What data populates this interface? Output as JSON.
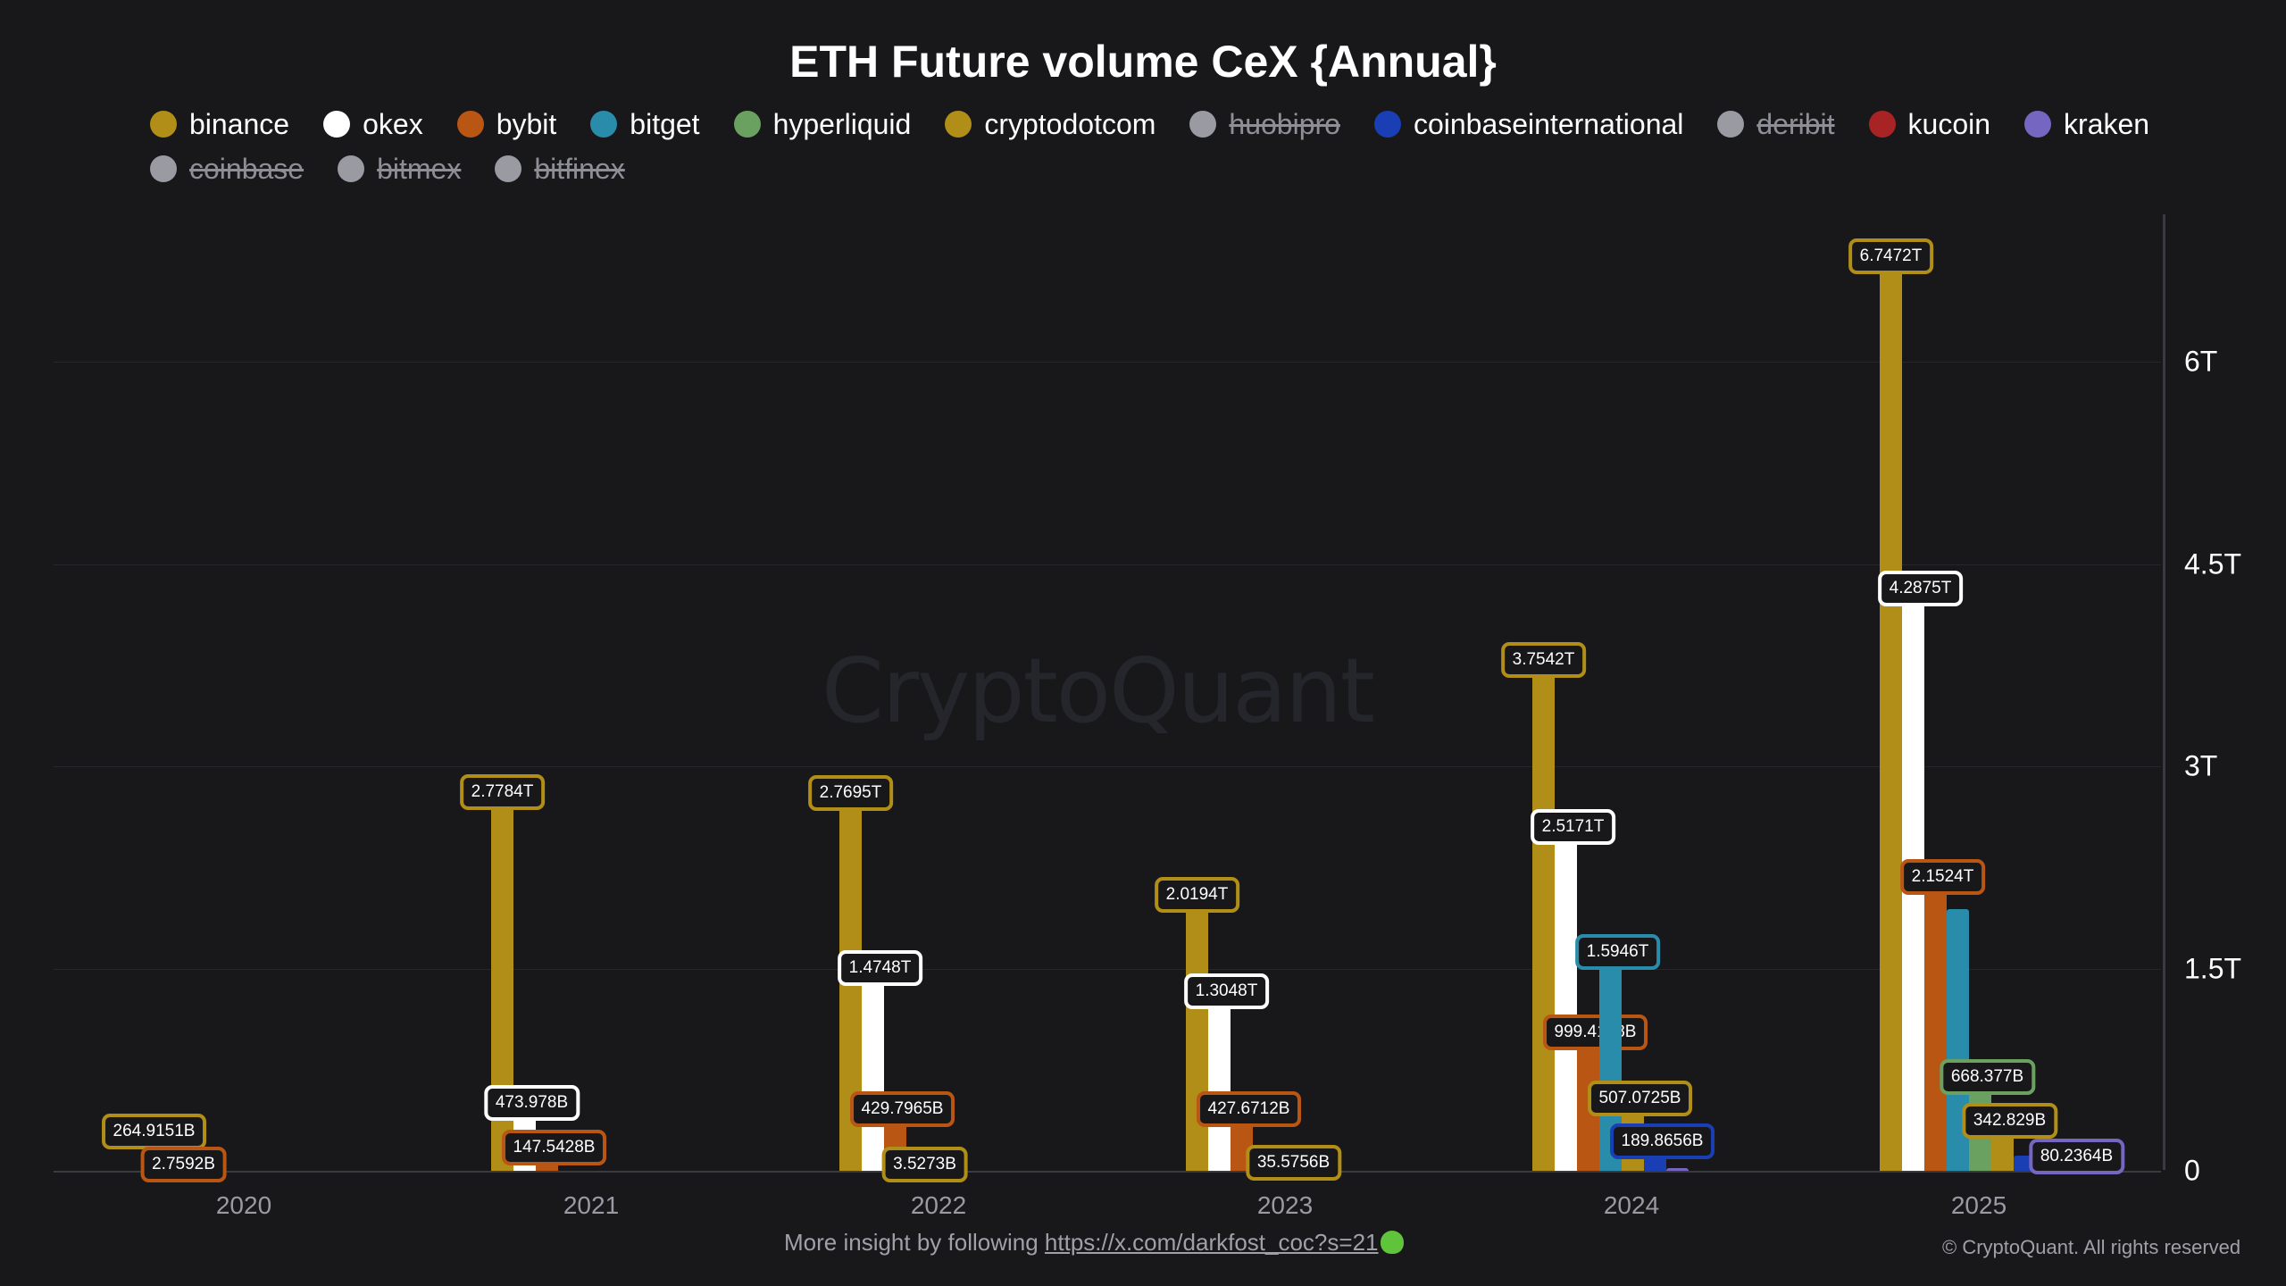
{
  "title": "ETH Future volume CeX {Annual}",
  "legend": [
    {
      "name": "binance",
      "color": "#b08e17",
      "hidden": false
    },
    {
      "name": "okex",
      "color": "#ffffff",
      "hidden": false
    },
    {
      "name": "bybit",
      "color": "#b95614",
      "hidden": false
    },
    {
      "name": "bitget",
      "color": "#2a8cab",
      "hidden": false
    },
    {
      "name": "hyperliquid",
      "color": "#6aa160",
      "hidden": false
    },
    {
      "name": "cryptodotcom",
      "color": "#b08e17",
      "hidden": false
    },
    {
      "name": "huobipro",
      "color": "#9a9aa2",
      "hidden": true
    },
    {
      "name": "coinbaseinternational",
      "color": "#1a3fb5",
      "hidden": false
    },
    {
      "name": "deribit",
      "color": "#9a9aa2",
      "hidden": true
    },
    {
      "name": "kucoin",
      "color": "#a82424",
      "hidden": false
    },
    {
      "name": "kraken",
      "color": "#7566c2",
      "hidden": false
    },
    {
      "name": "coinbase",
      "color": "#9a9aa2",
      "hidden": true
    },
    {
      "name": "bitmex",
      "color": "#9a9aa2",
      "hidden": true
    },
    {
      "name": "bitfinex",
      "color": "#9a9aa2",
      "hidden": true
    }
  ],
  "y_axis": {
    "ticks": [
      "6T",
      "4.5T",
      "3T",
      "1.5T",
      "0"
    ]
  },
  "x_axis": {
    "ticks": [
      "2020",
      "2021",
      "2022",
      "2023",
      "2024",
      "2025"
    ]
  },
  "watermark": "CryptoQuant",
  "footer": {
    "prefix": "More insight by following ",
    "link": "https://x.com/darkfost_coc?s=21",
    "copyright": "© CryptoQuant. All rights reserved"
  },
  "labels": {
    "2020": {
      "binance": "264.9151B",
      "bybit": "2.7592B"
    },
    "2021": {
      "binance": "2.7784T",
      "okex": "473.978B",
      "bybit": "147.5428B"
    },
    "2022": {
      "binance": "2.7695T",
      "okex": "1.4748T",
      "bybit": "429.7965B",
      "cryptodotcom": "3.5273B"
    },
    "2023": {
      "binance": "2.0194T",
      "okex": "1.3048T",
      "bybit": "427.6712B",
      "cryptodotcom": "35.5756B"
    },
    "2024": {
      "binance": "3.7542T",
      "okex": "2.5171T",
      "bybit": "999.4148B",
      "bitget": "1.5946T",
      "cryptodotcom": "507.0725B",
      "coinbaseinternational": "189.8656B"
    },
    "2025": {
      "binance": "6.7472T",
      "okex": "4.2875T",
      "bybit": "2.1524T",
      "hyperliquid": "668.377B",
      "cryptodotcom": "342.829B",
      "kraken": "80.2364B"
    }
  },
  "chart_data": {
    "type": "bar",
    "title": "ETH Future volume CeX {Annual}",
    "xlabel": "",
    "ylabel": "",
    "ylim": [
      0,
      7000000000000
    ],
    "y_ticks": [
      0,
      1500000000000,
      3000000000000,
      4500000000000,
      6000000000000
    ],
    "y_tick_labels": [
      "0",
      "1.5T",
      "3T",
      "4.5T",
      "6T"
    ],
    "grid": true,
    "legend_position": "top",
    "categories": [
      "2020",
      "2021",
      "2022",
      "2023",
      "2024",
      "2025"
    ],
    "series": [
      {
        "name": "binance",
        "color": "#b08e17",
        "values": [
          264915100000,
          2778400000000,
          2769500000000,
          2019400000000,
          3754200000000,
          6747200000000
        ]
      },
      {
        "name": "okex",
        "color": "#ffffff",
        "values": [
          0,
          473978000000,
          1474800000000,
          1304800000000,
          2517100000000,
          4287500000000
        ]
      },
      {
        "name": "bybit",
        "color": "#b95614",
        "values": [
          2759200000,
          147542800000,
          429796500000,
          427671200000,
          999414800000,
          2152400000000
        ]
      },
      {
        "name": "bitget",
        "color": "#2a8cab",
        "values": [
          0,
          0,
          0,
          95000000000,
          1594600000000,
          1940000000000
        ]
      },
      {
        "name": "hyperliquid",
        "color": "#6aa160",
        "values": [
          0,
          0,
          0,
          0,
          0,
          668377000000
        ]
      },
      {
        "name": "cryptodotcom",
        "color": "#b08e17",
        "values": [
          0,
          0,
          3527300000,
          35575600000,
          507072500000,
          342829000000
        ]
      },
      {
        "name": "coinbaseinternational",
        "color": "#1a3fb5",
        "values": [
          0,
          0,
          0,
          0,
          189865600000,
          110000000000
        ]
      },
      {
        "name": "kucoin",
        "color": "#a82424",
        "values": [
          0,
          0,
          0,
          0,
          0,
          40000000000
        ]
      },
      {
        "name": "kraken",
        "color": "#7566c2",
        "values": [
          0,
          0,
          0,
          0,
          10000000000,
          80236400000
        ]
      }
    ],
    "hidden_series": [
      "huobipro",
      "deribit",
      "coinbase",
      "bitmex",
      "bitfinex"
    ],
    "annotations": [
      "CryptoQuant watermark"
    ]
  }
}
